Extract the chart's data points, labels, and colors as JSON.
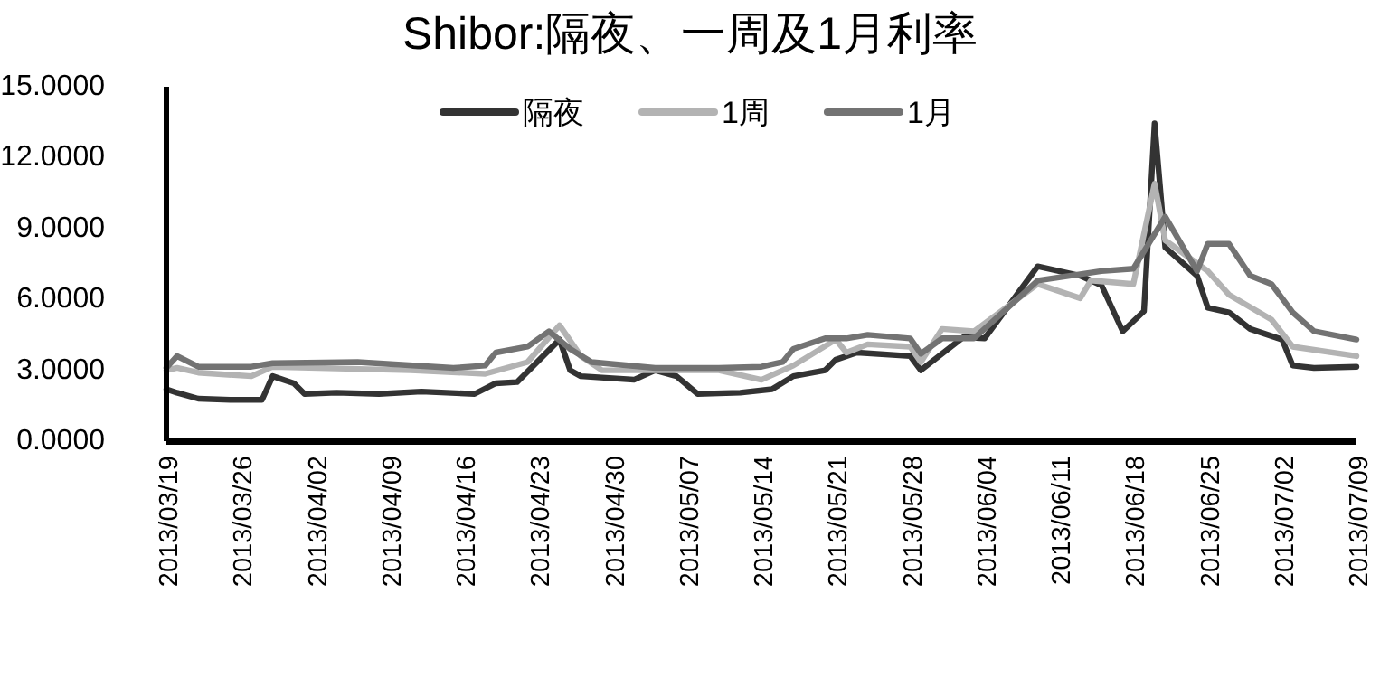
{
  "chart_data": {
    "type": "line",
    "title": "Shibor:隔夜、一周及1月利率",
    "ylim": [
      0,
      15
    ],
    "yticks": [
      {
        "value": 0,
        "label": "0.0000"
      },
      {
        "value": 3,
        "label": "3.0000"
      },
      {
        "value": 6,
        "label": "6.0000"
      },
      {
        "value": 9,
        "label": "9.0000"
      },
      {
        "value": 12,
        "label": "12.0000"
      },
      {
        "value": 15,
        "label": "15.0000"
      }
    ],
    "xlim": [
      "2013-03-19",
      "2013-07-09"
    ],
    "xticks": [
      {
        "value": "2013-03-19",
        "label": "2013/03/19"
      },
      {
        "value": "2013-03-26",
        "label": "2013/03/26"
      },
      {
        "value": "2013-04-02",
        "label": "2013/04/02"
      },
      {
        "value": "2013-04-09",
        "label": "2013/04/09"
      },
      {
        "value": "2013-04-16",
        "label": "2013/04/16"
      },
      {
        "value": "2013-04-23",
        "label": "2013/04/23"
      },
      {
        "value": "2013-04-30",
        "label": "2013/04/30"
      },
      {
        "value": "2013-05-07",
        "label": "2013/05/07"
      },
      {
        "value": "2013-05-14",
        "label": "2013/05/14"
      },
      {
        "value": "2013-05-21",
        "label": "2013/05/21"
      },
      {
        "value": "2013-05-28",
        "label": "2013/05/28"
      },
      {
        "value": "2013-06-04",
        "label": "2013/06/04"
      },
      {
        "value": "2013-06-11",
        "label": "2013/06/11"
      },
      {
        "value": "2013-06-18",
        "label": "2013/06/18"
      },
      {
        "value": "2013-06-25",
        "label": "2013/06/25"
      },
      {
        "value": "2013-07-02",
        "label": "2013/07/02"
      },
      {
        "value": "2013-07-09",
        "label": "2013/07/09"
      }
    ],
    "legend": "top",
    "grid": false,
    "marker": "none",
    "line_style": "solid",
    "series": [
      {
        "name": "隔夜",
        "color": "#333333",
        "x": [
          "2013-03-19",
          "2013-03-20",
          "2013-03-22",
          "2013-03-25",
          "2013-03-28",
          "2013-03-29",
          "2013-03-31",
          "2013-04-01",
          "2013-04-04",
          "2013-04-08",
          "2013-04-12",
          "2013-04-17",
          "2013-04-19",
          "2013-04-21",
          "2013-04-25",
          "2013-04-26",
          "2013-04-27",
          "2013-05-02",
          "2013-05-04",
          "2013-05-06",
          "2013-05-08",
          "2013-05-12",
          "2013-05-15",
          "2013-05-17",
          "2013-05-20",
          "2013-05-21",
          "2013-05-23",
          "2013-05-28",
          "2013-05-29",
          "2013-05-31",
          "2013-06-02",
          "2013-06-04",
          "2013-06-09",
          "2013-06-13",
          "2013-06-15",
          "2013-06-17",
          "2013-06-19",
          "2013-06-20",
          "2013-06-21",
          "2013-06-24",
          "2013-06-25",
          "2013-06-27",
          "2013-06-29",
          "2013-07-02",
          "2013-07-03",
          "2013-07-05",
          "2013-07-09"
        ],
        "values": [
          2.2,
          2.05,
          1.8,
          1.75,
          1.75,
          2.75,
          2.45,
          2.0,
          2.05,
          2.0,
          2.1,
          2.0,
          2.45,
          2.5,
          4.3,
          3.0,
          2.75,
          2.6,
          3.0,
          2.75,
          2.0,
          2.05,
          2.2,
          2.75,
          3.0,
          3.45,
          3.75,
          3.6,
          3.0,
          3.7,
          4.4,
          4.35,
          7.4,
          7.0,
          6.6,
          4.65,
          5.5,
          13.45,
          8.2,
          7.0,
          5.65,
          5.45,
          4.75,
          4.3,
          3.2,
          3.1,
          3.15
        ]
      },
      {
        "name": "1周",
        "color": "#b3b3b3",
        "x": [
          "2013-03-19",
          "2013-03-20",
          "2013-03-22",
          "2013-03-27",
          "2013-03-29",
          "2013-04-11",
          "2013-04-18",
          "2013-04-22",
          "2013-04-25",
          "2013-04-27",
          "2013-04-29",
          "2013-05-09",
          "2013-05-10",
          "2013-05-14",
          "2013-05-17",
          "2013-05-21",
          "2013-05-22",
          "2013-05-24",
          "2013-05-28",
          "2013-05-29",
          "2013-05-31",
          "2013-06-03",
          "2013-06-09",
          "2013-06-13",
          "2013-06-14",
          "2013-06-18",
          "2013-06-20",
          "2013-06-21",
          "2013-06-25",
          "2013-06-27",
          "2013-07-01",
          "2013-07-03",
          "2013-07-09"
        ],
        "values": [
          3.0,
          3.1,
          2.9,
          2.75,
          3.15,
          3.0,
          2.85,
          3.35,
          4.9,
          3.6,
          3.0,
          3.0,
          3.0,
          2.6,
          3.2,
          4.3,
          3.75,
          4.1,
          4.0,
          3.35,
          4.75,
          4.65,
          6.65,
          6.05,
          6.8,
          6.65,
          10.9,
          8.5,
          7.2,
          6.2,
          5.15,
          4.0,
          3.6
        ]
      },
      {
        "name": "1月",
        "color": "#737373",
        "x": [
          "2013-03-19",
          "2013-03-20",
          "2013-03-22",
          "2013-03-27",
          "2013-03-29",
          "2013-04-06",
          "2013-04-15",
          "2013-04-18",
          "2013-04-19",
          "2013-04-22",
          "2013-04-24",
          "2013-04-26",
          "2013-04-28",
          "2013-05-04",
          "2013-05-10",
          "2013-05-14",
          "2013-05-16",
          "2013-05-17",
          "2013-05-20",
          "2013-05-22",
          "2013-05-24",
          "2013-05-28",
          "2013-05-29",
          "2013-05-31",
          "2013-06-03",
          "2013-06-09",
          "2013-06-15",
          "2013-06-18",
          "2013-06-21",
          "2013-06-24",
          "2013-06-25",
          "2013-06-27",
          "2013-06-29",
          "2013-07-01",
          "2013-07-03",
          "2013-07-05",
          "2013-07-09"
        ],
        "values": [
          3.1,
          3.6,
          3.15,
          3.15,
          3.3,
          3.35,
          3.1,
          3.2,
          3.75,
          4.0,
          4.65,
          3.9,
          3.35,
          3.1,
          3.1,
          3.15,
          3.35,
          3.9,
          4.35,
          4.35,
          4.5,
          4.35,
          3.7,
          4.35,
          4.35,
          6.8,
          7.2,
          7.3,
          9.5,
          7.2,
          8.35,
          8.35,
          7.0,
          6.65,
          5.45,
          4.65,
          4.3
        ]
      }
    ]
  }
}
